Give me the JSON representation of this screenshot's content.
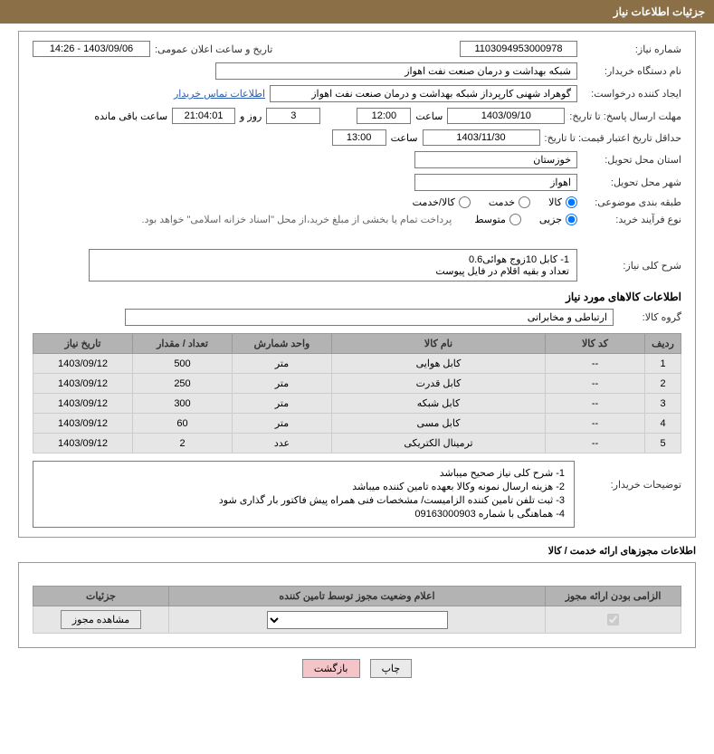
{
  "header": {
    "title": "جزئیات اطلاعات نیاز"
  },
  "fields": {
    "need_no_label": "شماره نیاز:",
    "need_no": "1103094953000978",
    "announce_label": "تاریخ و ساعت اعلان عمومی:",
    "announce": "1403/09/06 - 14:26",
    "buyer_org_label": "نام دستگاه خریدار:",
    "buyer_org": "شبکه بهداشت و درمان صنعت نفت اهواز",
    "requester_label": "ایجاد کننده درخواست:",
    "requester": "گوهراد شهنی کارپرداز شبکه بهداشت و درمان صنعت نفت اهواز",
    "contact_link": "اطلاعات تماس خریدار",
    "deadline_label": "مهلت ارسال پاسخ: تا تاریخ:",
    "deadline_date": "1403/09/10",
    "time_label": "ساعت",
    "deadline_time": "12:00",
    "days_count": "3",
    "days_and": "روز و",
    "hours_count": "21:04:01",
    "hours_remain": "ساعت باقی مانده",
    "validity_label": "حداقل تاریخ اعتبار قیمت: تا تاریخ:",
    "validity_date": "1403/11/30",
    "validity_time": "13:00",
    "province_label": "استان محل تحویل:",
    "province": "خوزستان",
    "city_label": "شهر محل تحویل:",
    "city": "اهواز",
    "category_label": "طبقه بندی موضوعی:",
    "cat_kala": "کالا",
    "cat_khedmat": "خدمت",
    "cat_kala_khedmat": "کالا/خدمت",
    "process_label": "نوع فرآیند خرید:",
    "proc_small": "جزیی",
    "proc_medium": "متوسط",
    "process_note": "پرداخت تمام یا بخشی از مبلغ خرید،از محل \"اسناد خزانه اسلامی\" خواهد بود.",
    "desc_label": "شرح کلی نیاز:",
    "desc_line1": "1- کابل 10زوج هوائی0.6",
    "desc_line2": "تعداد و بقیه اقلام در فایل پیوست",
    "goods_info_title": "اطلاعات کالاهای مورد نیاز",
    "group_label": "گروه کالا:",
    "group": "ارتباطی و مخابراتی"
  },
  "table": {
    "headers": [
      "ردیف",
      "کد کالا",
      "نام کالا",
      "واحد شمارش",
      "تعداد / مقدار",
      "تاریخ نیاز"
    ],
    "rows": [
      [
        "1",
        "--",
        "کابل هوایی",
        "متر",
        "500",
        "1403/09/12"
      ],
      [
        "2",
        "--",
        "کابل قدرت",
        "متر",
        "250",
        "1403/09/12"
      ],
      [
        "3",
        "--",
        "کابل شبکه",
        "متر",
        "300",
        "1403/09/12"
      ],
      [
        "4",
        "--",
        "کابل مسی",
        "متر",
        "60",
        "1403/09/12"
      ],
      [
        "5",
        "--",
        "ترمینال الکتریکی",
        "عدد",
        "2",
        "1403/09/12"
      ]
    ]
  },
  "buyer_notes": {
    "label": "توضیحات خریدار:",
    "lines": [
      "1- شرح کلی نیاز صحیح میباشد",
      "2- هزینه ارسال نمونه وکالا بعهده تامین کننده میباشد",
      "3- ثبت تلفن تامین کننده الزامیست/ مشخصات فنی همراه پیش فاکتور بار گذاری شود",
      "4- هماهنگی با شماره 09163000903"
    ]
  },
  "license": {
    "title": "اطلاعات مجوزهای ارائه خدمت / کالا",
    "headers": [
      "الزامی بودن ارائه مجوز",
      "اعلام وضعیت مجوز توسط تامین کننده",
      "جزئیات"
    ],
    "view_btn": "مشاهده مجوز"
  },
  "footer": {
    "print": "چاپ",
    "back": "بازگشت"
  }
}
